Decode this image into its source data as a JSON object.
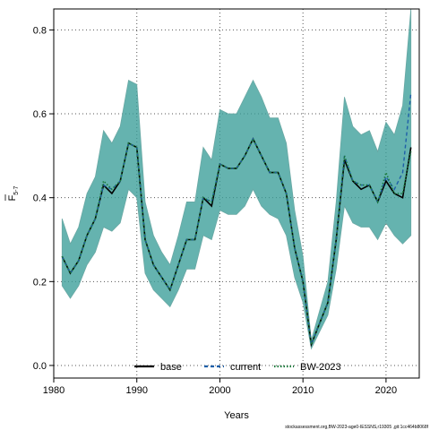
{
  "chart_data": {
    "type": "line",
    "xlabel": "Years",
    "ylabel_main": "F",
    "ylabel_sub": "5-7",
    "xlim": [
      1980,
      2024
    ],
    "ylim": [
      -0.03,
      0.85
    ],
    "xticks": [
      1980,
      1990,
      2000,
      2010,
      2020
    ],
    "yticks": [
      0.0,
      0.2,
      0.4,
      0.6,
      0.8
    ],
    "grid": true,
    "legend_position": "bottom",
    "colors": {
      "band": "#3a9d98",
      "band_edge": "#6aa8a4",
      "base": "#000000",
      "current": "#1f5fa8",
      "bw2023": "#1a7a3a"
    },
    "x": [
      1981,
      1982,
      1983,
      1984,
      1985,
      1986,
      1987,
      1988,
      1989,
      1990,
      1991,
      1992,
      1993,
      1994,
      1995,
      1996,
      1997,
      1998,
      1999,
      2000,
      2001,
      2002,
      2003,
      2004,
      2005,
      2006,
      2007,
      2008,
      2009,
      2010,
      2011,
      2012,
      2013,
      2014,
      2015,
      2016,
      2017,
      2018,
      2019,
      2020,
      2021,
      2022,
      2023
    ],
    "series": [
      {
        "name": "base",
        "style": "solid",
        "values": [
          0.26,
          0.22,
          0.25,
          0.31,
          0.35,
          0.43,
          0.41,
          0.44,
          0.53,
          0.52,
          0.3,
          0.24,
          0.21,
          0.18,
          0.24,
          0.3,
          0.3,
          0.4,
          0.38,
          0.48,
          0.47,
          0.47,
          0.5,
          0.54,
          0.5,
          0.46,
          0.46,
          0.41,
          0.28,
          0.2,
          0.05,
          0.1,
          0.15,
          0.3,
          0.49,
          0.44,
          0.42,
          0.43,
          0.39,
          0.44,
          0.41,
          0.4,
          0.52
        ]
      },
      {
        "name": "current",
        "style": "dashed",
        "values": [
          0.26,
          0.22,
          0.25,
          0.31,
          0.35,
          0.43,
          0.42,
          0.44,
          0.53,
          0.52,
          0.3,
          0.24,
          0.21,
          0.18,
          0.24,
          0.3,
          0.3,
          0.4,
          0.39,
          0.48,
          0.47,
          0.47,
          0.5,
          0.54,
          0.5,
          0.46,
          0.46,
          0.41,
          0.28,
          0.2,
          0.05,
          0.1,
          0.15,
          0.3,
          0.5,
          0.44,
          0.43,
          0.43,
          0.39,
          0.45,
          0.42,
          0.46,
          0.65
        ]
      },
      {
        "name": "BW-2023",
        "style": "dotted",
        "values": [
          0.26,
          0.22,
          0.25,
          0.31,
          0.35,
          0.44,
          0.42,
          0.44,
          0.53,
          0.52,
          0.3,
          0.24,
          0.21,
          0.18,
          0.24,
          0.3,
          0.3,
          0.4,
          0.39,
          0.48,
          0.47,
          0.47,
          0.5,
          0.54,
          0.5,
          0.46,
          0.46,
          0.41,
          0.28,
          0.2,
          0.05,
          0.1,
          0.15,
          0.3,
          0.5,
          0.44,
          0.43,
          0.43,
          0.39,
          0.46,
          0.41,
          0.41,
          0.51
        ]
      }
    ],
    "band_upper": [
      0.35,
      0.29,
      0.33,
      0.41,
      0.45,
      0.56,
      0.53,
      0.57,
      0.68,
      0.67,
      0.39,
      0.31,
      0.27,
      0.24,
      0.31,
      0.39,
      0.39,
      0.52,
      0.49,
      0.61,
      0.6,
      0.6,
      0.64,
      0.68,
      0.64,
      0.59,
      0.59,
      0.53,
      0.37,
      0.26,
      0.06,
      0.13,
      0.2,
      0.39,
      0.64,
      0.57,
      0.55,
      0.56,
      0.51,
      0.58,
      0.55,
      0.62,
      0.85
    ],
    "band_lower": [
      0.19,
      0.16,
      0.19,
      0.24,
      0.27,
      0.33,
      0.32,
      0.34,
      0.42,
      0.4,
      0.22,
      0.18,
      0.16,
      0.14,
      0.18,
      0.23,
      0.23,
      0.31,
      0.3,
      0.37,
      0.36,
      0.36,
      0.38,
      0.42,
      0.38,
      0.36,
      0.35,
      0.31,
      0.21,
      0.15,
      0.04,
      0.08,
      0.12,
      0.23,
      0.38,
      0.34,
      0.33,
      0.33,
      0.3,
      0.34,
      0.31,
      0.29,
      0.31
    ],
    "legend": [
      "base",
      "current",
      "BW-2023"
    ],
    "footer": "stockassessment.org,BW-2023-age0-IESSNS,r19305 ,git:1cc464b8068f"
  }
}
